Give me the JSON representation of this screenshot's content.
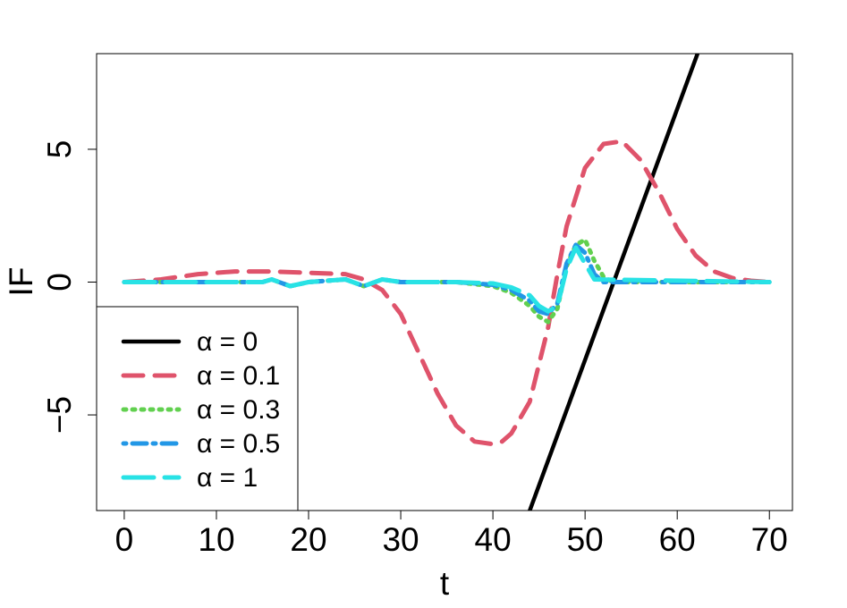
{
  "chart_data": {
    "type": "line",
    "title": "",
    "xlabel": "t",
    "ylabel": "IF",
    "xlim": [
      -3,
      72.5
    ],
    "ylim": [
      -8.6,
      8.6
    ],
    "x_ticks": [
      0,
      10,
      20,
      30,
      40,
      50,
      60,
      70
    ],
    "y_ticks": [
      -5,
      0,
      5
    ],
    "grid": false,
    "legend_position": "bottom-left",
    "series": [
      {
        "name": "α = 0",
        "color": "#000000",
        "dash": "solid",
        "x": [
          44,
          62.2
        ],
        "y": [
          -8.6,
          8.6
        ]
      },
      {
        "name": "α = 0.1",
        "color": "#DF536B",
        "dash": "dashed",
        "x": [
          0,
          4,
          8,
          12,
          16,
          20,
          24,
          26,
          28,
          30,
          32,
          34,
          36,
          38,
          40,
          41,
          42,
          44,
          46,
          47,
          48,
          50,
          52,
          54,
          56,
          58,
          60,
          62,
          64,
          66,
          68,
          70
        ],
        "y": [
          0,
          0.1,
          0.3,
          0.4,
          0.4,
          0.35,
          0.3,
          0.1,
          -0.3,
          -1.2,
          -2.7,
          -4.2,
          -5.4,
          -6,
          -6.1,
          -6,
          -5.7,
          -4.5,
          -1.7,
          0.3,
          2.1,
          4.3,
          5.2,
          5.3,
          4.6,
          3.4,
          2.0,
          1.0,
          0.4,
          0.15,
          0.05,
          0
        ]
      },
      {
        "name": "α = 0.3",
        "color": "#61D04F",
        "dash": "dotted",
        "x": [
          0,
          10,
          15,
          16,
          18,
          20,
          24,
          26,
          28,
          30,
          36,
          40,
          42,
          44,
          45,
          46,
          47,
          48,
          49,
          50,
          51,
          52,
          53,
          55,
          70
        ],
        "y": [
          0,
          0,
          0,
          0.1,
          -0.15,
          0,
          0.1,
          -0.15,
          0.1,
          0,
          0,
          -0.15,
          -0.4,
          -0.9,
          -1.3,
          -1.5,
          -1.0,
          0.6,
          1.4,
          1.6,
          0.8,
          0.2,
          0,
          0,
          0
        ]
      },
      {
        "name": "α = 0.5",
        "color": "#2297E6",
        "dash": "dotdash",
        "x": [
          0,
          10,
          15,
          16,
          18,
          20,
          24,
          26,
          28,
          30,
          36,
          40,
          42,
          44,
          45,
          46,
          47,
          48,
          49,
          50,
          51,
          52,
          70
        ],
        "y": [
          0,
          0,
          0,
          0.1,
          -0.15,
          0,
          0.1,
          -0.15,
          0.1,
          0,
          0,
          -0.1,
          -0.3,
          -0.7,
          -1.1,
          -1.2,
          -0.8,
          0.7,
          1.4,
          1.1,
          0.3,
          0,
          0
        ]
      },
      {
        "name": "α = 1",
        "color": "#28E2E5",
        "dash": "longdash",
        "x": [
          0,
          10,
          15,
          16,
          18,
          20,
          24,
          26,
          28,
          30,
          36,
          40,
          42,
          44,
          45,
          46,
          47,
          48,
          49,
          50,
          51,
          70
        ],
        "y": [
          0,
          0,
          0,
          0.1,
          -0.15,
          0,
          0.1,
          -0.15,
          0.1,
          0,
          0,
          -0.05,
          -0.2,
          -0.5,
          -0.9,
          -1.1,
          -0.9,
          0.5,
          1.3,
          0.7,
          0.1,
          0
        ]
      }
    ]
  }
}
